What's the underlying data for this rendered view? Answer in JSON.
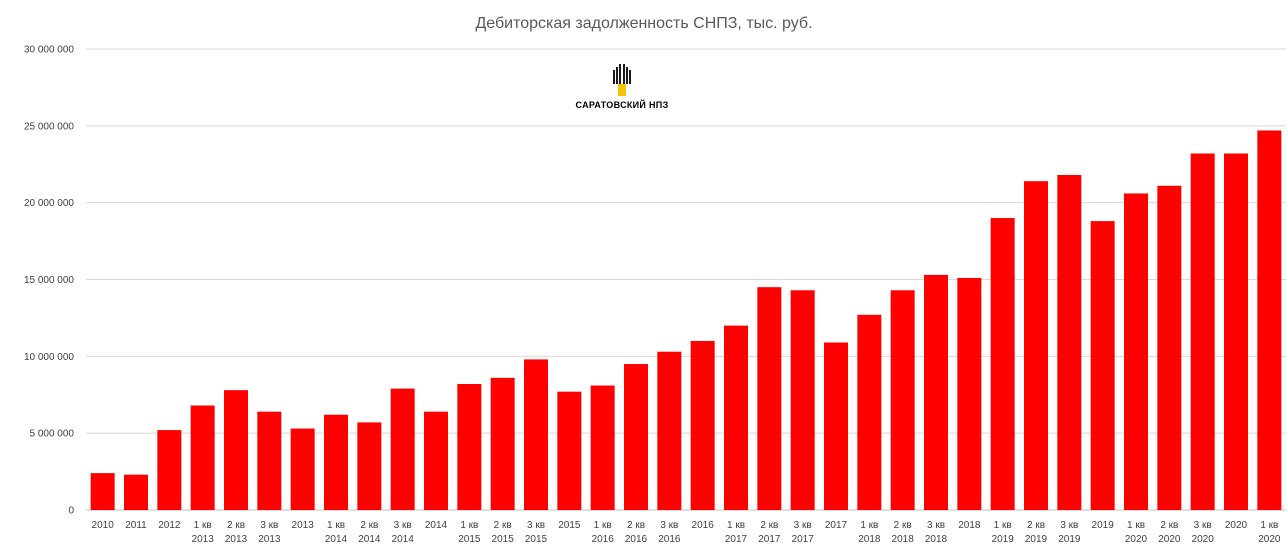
{
  "chart_data": {
    "type": "bar",
    "title": "Дебиторская задолженность СНПЗ, тыс. руб.",
    "xlabel": "",
    "ylabel": "",
    "ylim": [
      0,
      30000000
    ],
    "yticks": [
      0,
      5000000,
      10000000,
      15000000,
      20000000,
      25000000,
      30000000
    ],
    "ytick_labels": [
      "0",
      "5 000 000",
      "10 000 000",
      "15 000 000",
      "20 000 000",
      "25 000 000",
      "30 000 000"
    ],
    "grid": true,
    "legend": "none",
    "bar_color": "#ff0000",
    "categories": [
      [
        "2010"
      ],
      [
        "2011"
      ],
      [
        "2012"
      ],
      [
        "1 кв",
        "2013"
      ],
      [
        "2 кв",
        "2013"
      ],
      [
        "3 кв",
        "2013"
      ],
      [
        "2013"
      ],
      [
        "1 кв",
        "2014"
      ],
      [
        "2 кв",
        "2014"
      ],
      [
        "3 кв",
        "2014"
      ],
      [
        "2014"
      ],
      [
        "1 кв",
        "2015"
      ],
      [
        "2 кв",
        "2015"
      ],
      [
        "3 кв",
        "2015"
      ],
      [
        "2015"
      ],
      [
        "1 кв",
        "2016"
      ],
      [
        "2 кв",
        "2016"
      ],
      [
        "3 кв",
        "2016"
      ],
      [
        "2016"
      ],
      [
        "1 кв",
        "2017"
      ],
      [
        "2 кв",
        "2017"
      ],
      [
        "3 кв",
        "2017"
      ],
      [
        "2017"
      ],
      [
        "1 кв",
        "2018"
      ],
      [
        "2 кв",
        "2018"
      ],
      [
        "3 кв",
        "2018"
      ],
      [
        "2018"
      ],
      [
        "1 кв",
        "2019"
      ],
      [
        "2 кв",
        "2019"
      ],
      [
        "3 кв",
        "2019"
      ],
      [
        "2019"
      ],
      [
        "1 кв",
        "2020"
      ],
      [
        "2 кв",
        "2020"
      ],
      [
        "3 кв",
        "2020"
      ],
      [
        "2020"
      ],
      [
        "1 кв",
        "2020"
      ]
    ],
    "values": [
      2400000,
      2300000,
      5200000,
      6800000,
      7800000,
      6400000,
      5300000,
      6200000,
      5700000,
      7900000,
      6400000,
      8200000,
      8600000,
      9800000,
      7700000,
      8100000,
      9500000,
      10300000,
      11000000,
      12000000,
      14500000,
      14300000,
      10900000,
      12700000,
      14300000,
      15300000,
      15100000,
      19000000,
      21400000,
      21800000,
      18800000,
      20600000,
      21100000,
      23200000,
      23200000,
      24700000
    ]
  },
  "logo": {
    "text": "САРАТОВСКИЙ НПЗ",
    "icon": "rosneft-logo-icon",
    "colors": {
      "dark": "#1a1a1a",
      "accent": "#f5c400"
    }
  }
}
